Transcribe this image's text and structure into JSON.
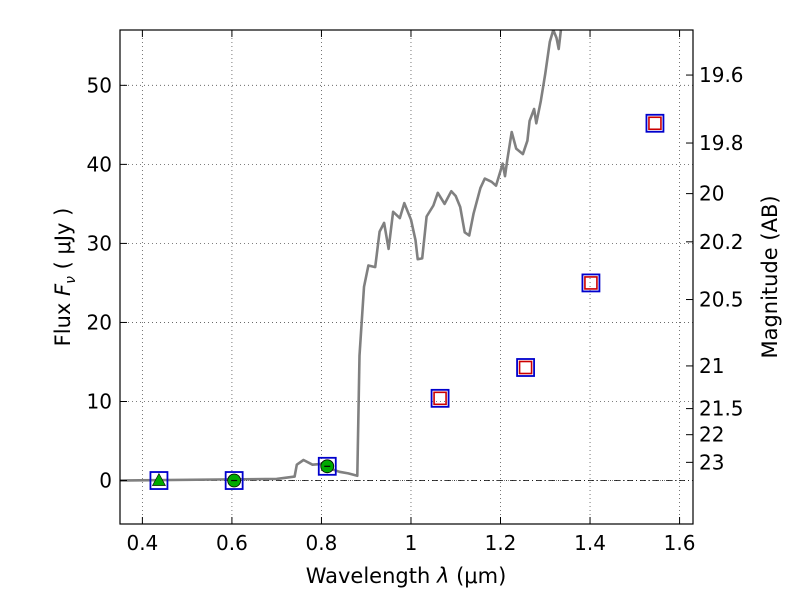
{
  "chart_data": {
    "type": "scatter",
    "title": "",
    "xlabel_main": "Wavelength",
    "xlabel_symbol": "λ",
    "xlabel_unit": "(μm)",
    "ylabel_main": "Flux",
    "ylabel_symbol": "F",
    "ylabel_subscript": "ν",
    "ylabel_unit": "( μJy )",
    "y2label": "Magnitude (AB)",
    "xlim": [
      0.35,
      1.63
    ],
    "ylim": [
      -5.5,
      57
    ],
    "grid": true,
    "x_ticks": [
      0.4,
      0.6,
      0.8,
      1.0,
      1.2,
      1.4,
      1.6
    ],
    "x_tick_labels": [
      "0.4",
      "0.6",
      "0.8",
      "1",
      "1.2",
      "1.4",
      "1.6"
    ],
    "y_ticks": [
      0,
      10,
      20,
      30,
      40,
      50
    ],
    "y_tick_labels": [
      "0",
      "10",
      "20",
      "30",
      "40",
      "50"
    ],
    "y2_ticks": [
      {
        "label": "19.6",
        "flux": 51.3
      },
      {
        "label": "19.8",
        "flux": 42.7
      },
      {
        "label": "20",
        "flux": 36.3
      },
      {
        "label": "20.2",
        "flux": 30.2
      },
      {
        "label": "20.5",
        "flux": 22.9
      },
      {
        "label": "21",
        "flux": 14.5
      },
      {
        "label": "21.5",
        "flux": 9.1
      },
      {
        "label": "22",
        "flux": 5.8
      },
      {
        "label": "23",
        "flux": 2.3
      }
    ],
    "series": [
      {
        "name": "model spectrum",
        "kind": "line",
        "color": "#808080",
        "points": [
          [
            0.35,
            0.0
          ],
          [
            0.7,
            0.2
          ],
          [
            0.74,
            0.5
          ],
          [
            0.745,
            2.0
          ],
          [
            0.76,
            2.6
          ],
          [
            0.78,
            2.0
          ],
          [
            0.8,
            2.1
          ],
          [
            0.82,
            1.5
          ],
          [
            0.84,
            1.1
          ],
          [
            0.86,
            0.9
          ],
          [
            0.88,
            0.6
          ],
          [
            0.885,
            15.8
          ],
          [
            0.895,
            24.5
          ],
          [
            0.905,
            27.2
          ],
          [
            0.92,
            27.0
          ],
          [
            0.93,
            31.5
          ],
          [
            0.94,
            32.6
          ],
          [
            0.95,
            29.3
          ],
          [
            0.96,
            34.0
          ],
          [
            0.975,
            33.2
          ],
          [
            0.985,
            35.1
          ],
          [
            1.0,
            33.0
          ],
          [
            1.01,
            30.4
          ],
          [
            1.015,
            28.0
          ],
          [
            1.025,
            28.1
          ],
          [
            1.035,
            33.4
          ],
          [
            1.05,
            34.8
          ],
          [
            1.06,
            36.4
          ],
          [
            1.075,
            35.0
          ],
          [
            1.09,
            36.6
          ],
          [
            1.1,
            36.0
          ],
          [
            1.11,
            34.6
          ],
          [
            1.12,
            31.4
          ],
          [
            1.13,
            31.0
          ],
          [
            1.14,
            33.8
          ],
          [
            1.155,
            37.0
          ],
          [
            1.165,
            38.2
          ],
          [
            1.18,
            37.8
          ],
          [
            1.19,
            37.3
          ],
          [
            1.205,
            40.1
          ],
          [
            1.21,
            38.5
          ],
          [
            1.215,
            40.5
          ],
          [
            1.225,
            44.1
          ],
          [
            1.235,
            42.0
          ],
          [
            1.25,
            41.3
          ],
          [
            1.26,
            43.0
          ],
          [
            1.265,
            45.5
          ],
          [
            1.275,
            47.0
          ],
          [
            1.28,
            45.2
          ],
          [
            1.29,
            48.0
          ],
          [
            1.3,
            51.5
          ],
          [
            1.31,
            55.5
          ],
          [
            1.318,
            57.0
          ],
          [
            1.325,
            56.0
          ],
          [
            1.33,
            54.6
          ],
          [
            1.335,
            57.0
          ]
        ]
      },
      {
        "name": "observed photometry",
        "kind": "open-square",
        "color": "#0000cc",
        "points": [
          [
            0.437,
            0.0
          ],
          [
            0.605,
            0.0
          ],
          [
            0.813,
            1.8
          ],
          [
            1.065,
            10.4
          ],
          [
            1.256,
            14.3
          ],
          [
            1.402,
            25.0
          ],
          [
            1.545,
            45.2
          ]
        ]
      },
      {
        "name": "model photometry",
        "kind": "open-square",
        "color": "#cc0000",
        "points": [
          [
            1.065,
            10.4
          ],
          [
            1.256,
            14.3
          ],
          [
            1.402,
            25.0
          ],
          [
            1.545,
            45.2
          ]
        ]
      },
      {
        "name": "detections",
        "kind": "circle",
        "color": "#00aa00",
        "points": [
          [
            0.605,
            0.0
          ],
          [
            0.813,
            1.8
          ]
        ]
      },
      {
        "name": "upper limit",
        "kind": "triangle",
        "color": "#00aa00",
        "points": [
          [
            0.437,
            0.0
          ]
        ]
      }
    ]
  }
}
